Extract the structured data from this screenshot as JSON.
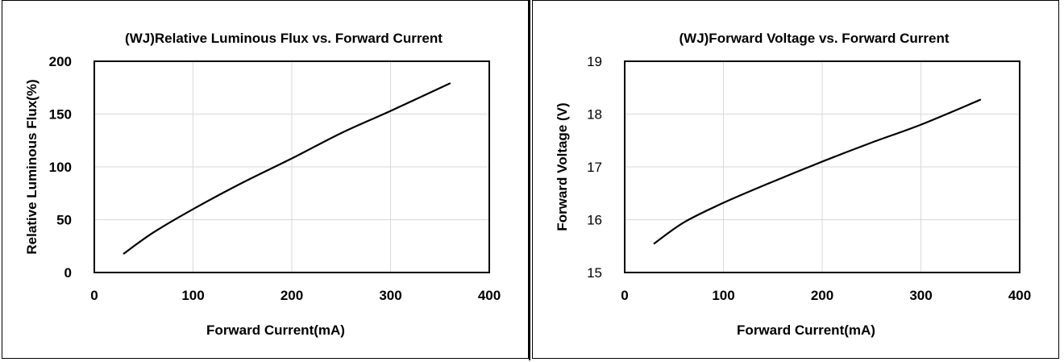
{
  "chart_data": [
    {
      "type": "line",
      "title": "(WJ)Relative Luminous Flux vs. Forward Current",
      "xlabel": "Forward Current(mA)",
      "ylabel": "Relative Luminous Flux(%)",
      "xlim": [
        0,
        400
      ],
      "ylim": [
        0,
        200
      ],
      "xticks": [
        0,
        100,
        200,
        300,
        400
      ],
      "yticks": [
        0,
        50,
        100,
        150,
        200
      ],
      "grid": true,
      "ytick_bold": true,
      "series": [
        {
          "color": "#000000",
          "x": [
            30,
            60,
            100,
            150,
            200,
            250,
            300,
            360
          ],
          "y": [
            18,
            38,
            60,
            85,
            108,
            132,
            153,
            179
          ]
        }
      ]
    },
    {
      "type": "line",
      "title": "(WJ)Forward Voltage vs. Forward Current",
      "xlabel": "Forward Current(mA)",
      "ylabel": "Forward Voltage (V)",
      "xlim": [
        0,
        400
      ],
      "ylim": [
        15,
        19
      ],
      "xticks": [
        0,
        100,
        200,
        300,
        400
      ],
      "yticks": [
        15,
        16,
        17,
        18,
        19
      ],
      "grid": true,
      "ytick_bold": false,
      "series": [
        {
          "color": "#000000",
          "x": [
            30,
            60,
            100,
            150,
            200,
            250,
            300,
            360
          ],
          "y": [
            15.55,
            15.95,
            16.32,
            16.72,
            17.1,
            17.46,
            17.8,
            18.27
          ]
        }
      ]
    }
  ]
}
